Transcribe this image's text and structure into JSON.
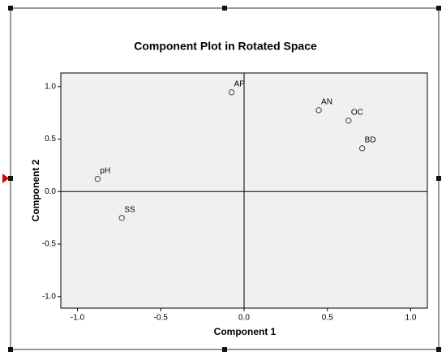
{
  "chart_data": {
    "type": "scatter",
    "title": "Component Plot in Rotated Space",
    "x_label": "Component 1",
    "y_label": "Component 2",
    "x": [
      -0.075,
      0.448,
      0.627,
      0.709,
      -0.879,
      -0.734
    ],
    "y": [
      0.946,
      0.776,
      0.676,
      0.413,
      0.12,
      -0.251
    ],
    "point_labels": [
      "AP",
      "AN",
      "OC",
      "BD",
      "pH",
      "SS"
    ],
    "marker_color": "#444444",
    "xlim": [
      -1.1,
      1.1
    ],
    "ylim": [
      -1.11,
      1.13
    ],
    "xticks": [
      {
        "value": -1,
        "label": "-1.0"
      },
      {
        "value": -0.5,
        "label": "-0.5"
      },
      {
        "value": 0,
        "label": "0.0"
      },
      {
        "value": 0.5,
        "label": "0.5"
      },
      {
        "value": 1,
        "label": "1.0"
      }
    ],
    "yticks": [
      {
        "value": -1,
        "label": "-1.0"
      },
      {
        "value": -0.5,
        "label": "-0.5"
      },
      {
        "value": 0,
        "label": "0.0"
      },
      {
        "value": 0.5,
        "label": "0.5"
      },
      {
        "value": 1,
        "label": "1.0"
      }
    ],
    "reference_lines": [
      {
        "axis": "x",
        "value": 0
      },
      {
        "axis": "y",
        "value": 0
      }
    ],
    "plot_background": "#f0f0f0"
  }
}
